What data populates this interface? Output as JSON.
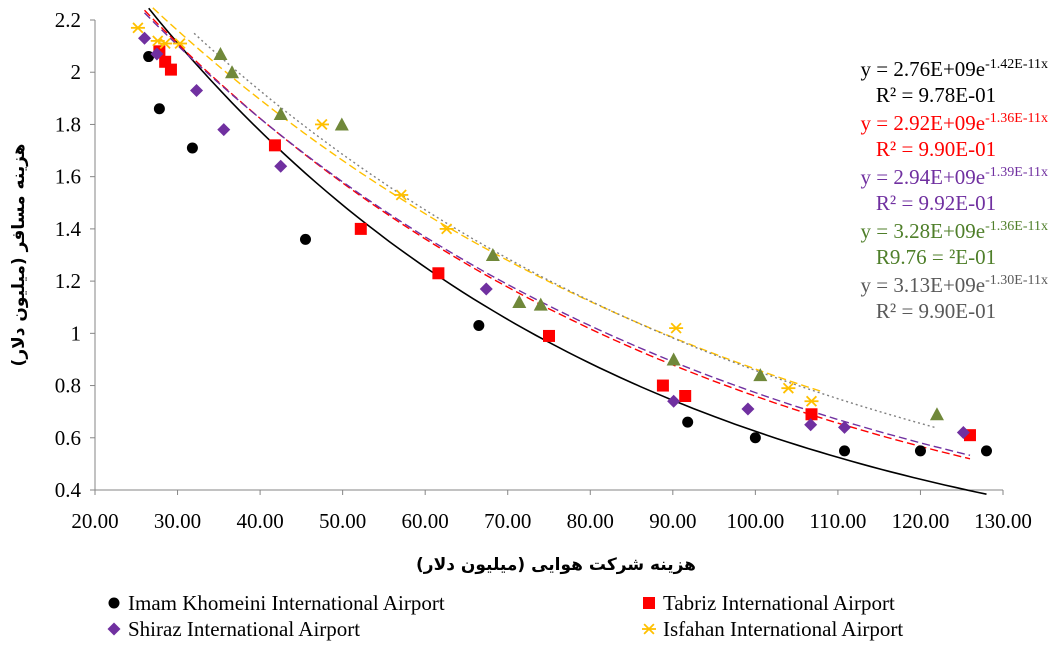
{
  "chart_data": {
    "type": "scatter",
    "xlabel": "هزینه شرکت هوایی (میلیون دلار)",
    "ylabel": "هزینه مسافر (میلیون دلار)",
    "xlim": [
      20,
      130
    ],
    "ylim": [
      0.4,
      2.2
    ],
    "x_ticks": [
      "20.00",
      "30.00",
      "40.00",
      "50.00",
      "60.00",
      "70.00",
      "80.00",
      "90.00",
      "100.00",
      "110.00",
      "120.00",
      "130.00"
    ],
    "y_ticks": [
      "0.4",
      "0.6",
      "0.8",
      "1",
      "1.2",
      "1.4",
      "1.6",
      "1.8",
      "2",
      "2.2"
    ],
    "grid": false,
    "legend_position": "bottom",
    "series": [
      {
        "name": "Imam Khomeini International Airport",
        "color": "#000000",
        "marker": "circle",
        "trend_style": "solid",
        "trend_color": "#000000",
        "trend_range": [
          26.5,
          128
        ],
        "trend_a": 3.56,
        "trend_k": 0.0174,
        "points": [
          [
            26.5,
            2.06
          ],
          [
            27.8,
            1.86
          ],
          [
            31.8,
            1.71
          ],
          [
            45.5,
            1.36
          ],
          [
            66.5,
            1.03
          ],
          [
            91.8,
            0.66
          ],
          [
            100,
            0.6
          ],
          [
            110.8,
            0.55
          ],
          [
            120,
            0.55
          ],
          [
            128,
            0.55
          ]
        ]
      },
      {
        "name": "Tabriz International Airport",
        "color": "#ff0000",
        "marker": "square",
        "trend_style": "dashed",
        "trend_color": "#ff0000",
        "trend_range": [
          26,
          126
        ],
        "trend_a": 3.27,
        "trend_k": 0.0146,
        "points": [
          [
            27.8,
            2.08
          ],
          [
            28.5,
            2.04
          ],
          [
            29.2,
            2.01
          ],
          [
            41.8,
            1.72
          ],
          [
            52.2,
            1.4
          ],
          [
            61.6,
            1.23
          ],
          [
            75,
            0.99
          ],
          [
            88.8,
            0.8
          ],
          [
            91.5,
            0.76
          ],
          [
            106.8,
            0.69
          ],
          [
            126,
            0.61
          ]
        ]
      },
      {
        "name": "Shiraz International Airport",
        "color": "#7030a0",
        "marker": "diamond",
        "trend_style": "dashed",
        "trend_color": "#7030a0",
        "trend_range": [
          26,
          126
        ],
        "trend_a": 3.23,
        "trend_k": 0.0143,
        "points": [
          [
            26,
            2.13
          ],
          [
            27.5,
            2.07
          ],
          [
            32.3,
            1.93
          ],
          [
            35.6,
            1.78
          ],
          [
            42.5,
            1.64
          ],
          [
            67.4,
            1.17
          ],
          [
            90.1,
            0.74
          ],
          [
            99.1,
            0.71
          ],
          [
            106.7,
            0.65
          ],
          [
            110.8,
            0.64
          ],
          [
            125.2,
            0.62
          ]
        ]
      },
      {
        "name": "Isfahan International Airport",
        "color": "#ffc000",
        "marker": "asterisk",
        "trend_style": "dashed",
        "trend_color": "#ffc000",
        "trend_range": [
          27,
          108
        ],
        "trend_a": 3.2,
        "trend_k": 0.0131,
        "points": [
          [
            25.2,
            2.17
          ],
          [
            27.6,
            2.12
          ],
          [
            28.5,
            2.11
          ],
          [
            30.3,
            2.11
          ],
          [
            47.5,
            1.8
          ],
          [
            57.1,
            1.53
          ],
          [
            62.6,
            1.4
          ],
          [
            90.4,
            1.02
          ],
          [
            104,
            0.79
          ],
          [
            106.8,
            0.74
          ]
        ]
      },
      {
        "name": "",
        "color": "#70883a",
        "marker": "triangle",
        "trend_style": "dotted",
        "trend_color": "#808080",
        "trend_range": [
          32,
          122
        ],
        "trend_a": 3.31,
        "trend_k": 0.0135,
        "points": [
          [
            35.2,
            2.07
          ],
          [
            36.6,
            2.0
          ],
          [
            42.5,
            1.84
          ],
          [
            49.9,
            1.8
          ],
          [
            68.2,
            1.3
          ],
          [
            71.4,
            1.12
          ],
          [
            74,
            1.11
          ],
          [
            90.1,
            0.9
          ],
          [
            100.6,
            0.84
          ],
          [
            122,
            0.69
          ]
        ]
      }
    ],
    "equations": [
      {
        "eq_text": "y = 2.76E+09e",
        "eq_exp": "-1.42E-11x",
        "r2_text": "R² = 9.78E-01",
        "color": "#000000"
      },
      {
        "eq_text": "y = 2.92E+09e",
        "eq_exp": "-1.36E-11x",
        "r2_text": "R² = 9.90E-01",
        "color": "#ff0000"
      },
      {
        "eq_text": "y = 2.94E+09e",
        "eq_exp": "-1.39E-11x",
        "r2_text": "R² = 9.92E-01",
        "color": "#7030a0"
      },
      {
        "eq_text": "y = 3.28E+09e",
        "eq_exp": "-1.36E-11x",
        "r2_text": "R9.76 = ²E-01",
        "color": "#4f7f2a"
      },
      {
        "eq_text": "y = 3.13E+09e",
        "eq_exp": "-1.30E-11x",
        "r2_text": "R² = 9.90E-01",
        "color": "#595959"
      }
    ]
  }
}
